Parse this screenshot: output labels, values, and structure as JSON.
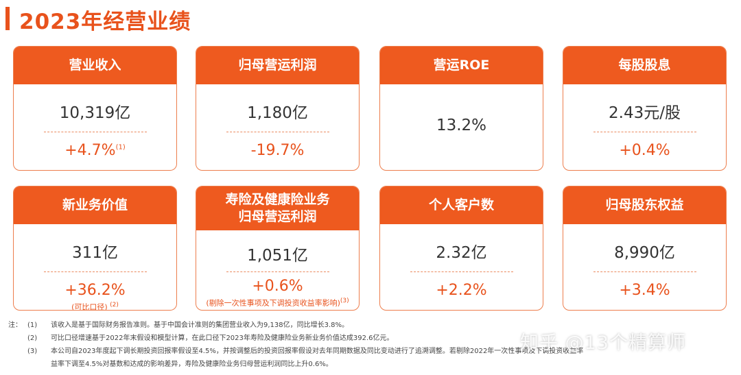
{
  "title": "2023年经营业绩",
  "cards": [
    {
      "label": "营业收入",
      "value": "10,319亿",
      "change": "+4.7%",
      "change_sup": "(1)"
    },
    {
      "label": "归母营运利润",
      "value": "1,180亿",
      "change": "-19.7%"
    },
    {
      "label": "营运ROE",
      "value": "13.2%"
    },
    {
      "label": "每股股息",
      "value": "2.43元/股",
      "change": "+0.4%"
    },
    {
      "label": "新业务价值",
      "value": "311亿",
      "change": "+36.2%",
      "sub": "(可比口径)",
      "sub_sup": "(2)"
    },
    {
      "label_line1": "寿险及健康险业务",
      "label_line2": "归母营运利润",
      "value": "1,051亿",
      "change": "+0.6%",
      "sub": "(剔除一次性事项及下调投资收益率影响)",
      "sub_sup": "(3)"
    },
    {
      "label": "个人客户数",
      "value": "2.32亿",
      "change": "+2.2%"
    },
    {
      "label": "归母股东权益",
      "value": "8,990亿",
      "change": "+3.4%"
    }
  ],
  "notes": {
    "prefix": "注：",
    "items": [
      {
        "num": "(1)",
        "text": "该收入是基于国际财务报告准则。基于中国会计准则的集团营业收入为9,138亿，同比增长3.8%。"
      },
      {
        "num": "(2)",
        "text": "可比口径增速基于2022年末假设和模型计算，在此口径下2023年寿险及健康险业务新业务价值达成392.6亿元。"
      },
      {
        "num": "(3)",
        "text": "本公司自2023年度起下调长期投资回报率假设至4.5%，并按调整后的投资回报率假设对去年同期数据及同比变动进行了追溯调整。若剔除2022年一次性事项及下调投资收益率",
        "cont": "益率下调至4.5%对基数和达成的影响差异，寿险及健康险业务归母营运利润同比上升0.6%。"
      }
    ]
  },
  "watermark": "知乎 @13个精算师"
}
